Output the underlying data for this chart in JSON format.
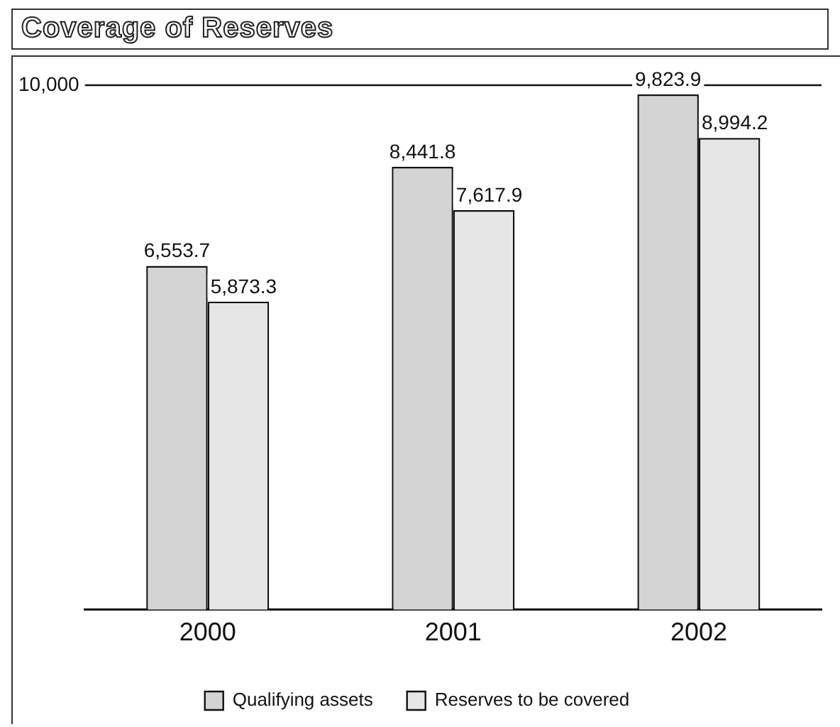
{
  "chart_data": {
    "type": "bar",
    "title": "Coverage of Reserves",
    "categories": [
      "2000",
      "2001",
      "2002"
    ],
    "series": [
      {
        "name": "Qualifying assets",
        "color": "#d4d4d4",
        "values": [
          6553.7,
          8441.8,
          9823.9
        ],
        "value_labels": [
          "6,553.7",
          "8,441.8",
          "9,823.9"
        ]
      },
      {
        "name": "Reserves to be covered",
        "color": "#e6e6e6",
        "values": [
          5873.3,
          7617.9,
          8994.2
        ],
        "value_labels": [
          "5,873.3",
          "7,617.9",
          "8,994.2"
        ]
      }
    ],
    "ylim": [
      0,
      10000
    ],
    "yticks": [
      {
        "value": 10000,
        "label": "10,000"
      }
    ],
    "ref_lines": [
      {
        "axis": "y",
        "value": 10000
      }
    ],
    "legend": "bottom"
  }
}
